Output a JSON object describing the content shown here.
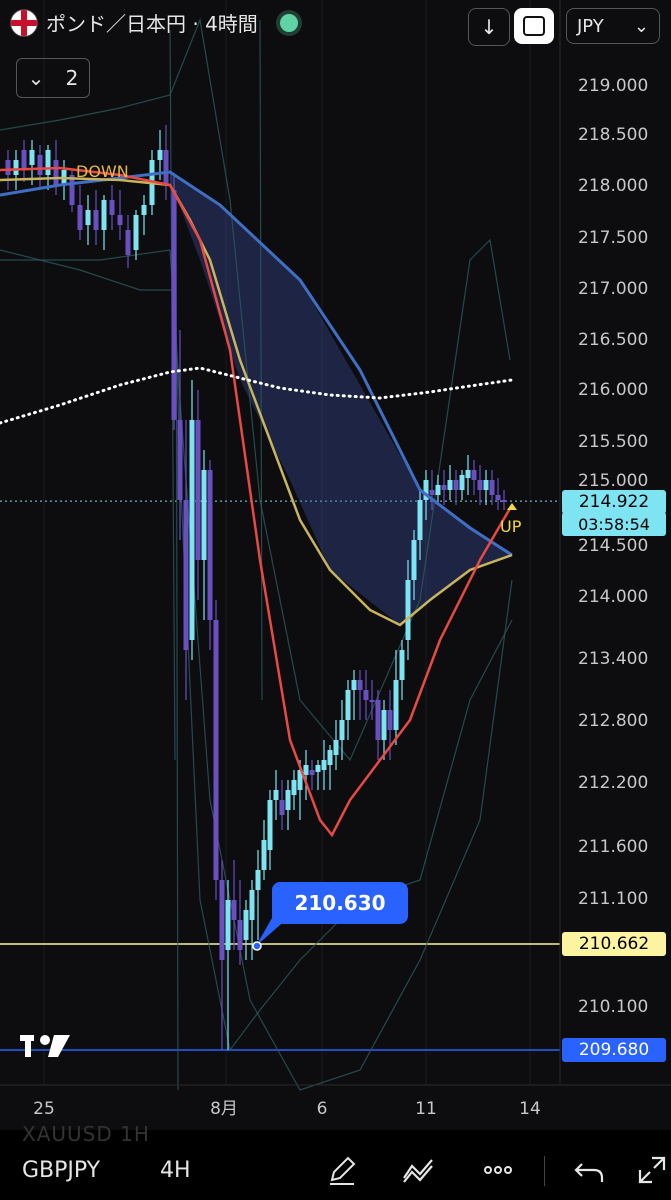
{
  "header": {
    "title": "ポンド／日本円 · 4時間",
    "currency": "JPY",
    "indicator_count": "2"
  },
  "bottom": {
    "symbol": "GBPJPY",
    "timeframe": "4H",
    "ghost_symbol": "XAUUSD  1H"
  },
  "labels": {
    "down": "DOWN",
    "up": "UP",
    "callout": "210.630",
    "tv_logo": "TV"
  },
  "price_tags": {
    "last": "214.922",
    "countdown": "03:58:54",
    "line1": "210.662",
    "line2": "209.680"
  },
  "colors": {
    "bg": "#0d0d0f",
    "candle_up": "#7fe4f2",
    "candle_down": "#6a4fc1",
    "ma_red": "#e84a43",
    "ma_yellow": "#c9b45e",
    "ma_blue": "#3f6fc4",
    "white_dots": "#ffffff",
    "last_price": "#7fe4f2",
    "line1": "#fdf4a2",
    "line2": "#2962ff"
  },
  "chart_data": {
    "type": "candlestick",
    "symbol": "GBPJPY",
    "timeframe": "4H",
    "y_ticks": [
      219.0,
      218.5,
      218.0,
      217.5,
      217.0,
      216.5,
      216.0,
      215.5,
      214.5,
      214.0,
      213.4,
      212.8,
      212.2,
      211.6,
      211.1,
      210.1
    ],
    "x_ticks": [
      "25",
      "8月",
      "6",
      "11",
      "14"
    ],
    "last_price": 214.922,
    "horizontal_lines": [
      210.662,
      209.68
    ],
    "annotation_low": 210.63,
    "series_markers": [
      "DOWN",
      "UP"
    ]
  }
}
